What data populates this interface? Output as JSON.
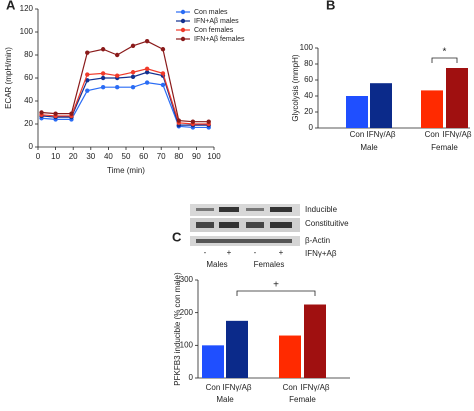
{
  "chart_data": [
    {
      "type": "line",
      "panel_label": "A",
      "x_label": "Time (min)",
      "y_label": "ECAR (mpH/min)",
      "x": [
        2,
        10,
        19,
        28,
        37,
        45,
        54,
        62,
        71,
        80,
        88,
        97
      ],
      "xlim": [
        0,
        100
      ],
      "xticks": [
        0,
        10,
        20,
        30,
        40,
        50,
        60,
        70,
        80,
        90,
        100
      ],
      "ylim": [
        0,
        120
      ],
      "yticks": [
        0,
        20,
        40,
        60,
        80,
        100,
        120
      ],
      "series": [
        {
          "name": "Con males",
          "color": "#2a6cf5",
          "values": [
            25,
            24,
            24,
            49,
            52,
            52,
            52,
            56,
            54,
            18,
            17,
            17
          ]
        },
        {
          "name": "IFN+Aβ males",
          "color": "#12308f",
          "values": [
            27,
            26,
            26,
            58,
            60,
            60,
            61,
            65,
            62,
            19,
            19,
            19
          ]
        },
        {
          "name": "Con females",
          "color": "#f03a2a",
          "values": [
            28,
            27,
            27,
            63,
            64,
            62,
            65,
            68,
            64,
            21,
            20,
            20
          ]
        },
        {
          "name": "IFN+Aβ females",
          "color": "#8a1a1a",
          "values": [
            30,
            29,
            29,
            82,
            85,
            80,
            88,
            92,
            85,
            23,
            22,
            22
          ]
        }
      ]
    },
    {
      "type": "bar",
      "panel_label": "B",
      "y_label": "Glycolysis (mmpH)",
      "categories": [
        "Con",
        "IFNγ/Aβ",
        "Con",
        "IFNγ/Aβ"
      ],
      "groups": [
        "Male",
        "Female"
      ],
      "values": [
        40,
        56,
        47,
        75
      ],
      "colors": [
        "#1f4fff",
        "#0b2a8a",
        "#ff2a00",
        "#a01010"
      ],
      "ylim": [
        0,
        100
      ],
      "yticks": [
        0,
        20,
        40,
        60,
        80,
        100
      ],
      "annotation": "*"
    },
    {
      "type": "bar",
      "panel_label": "C",
      "y_label": "PFKFB3 inducible (% con male)",
      "categories": [
        "Con",
        "IFNγ/Aβ",
        "Con",
        "IFNγ/Aβ"
      ],
      "groups": [
        "Male",
        "Female"
      ],
      "values": [
        100,
        175,
        130,
        225
      ],
      "colors": [
        "#1f4fff",
        "#0b2a8a",
        "#ff2a00",
        "#a01010"
      ],
      "ylim": [
        0,
        300
      ],
      "yticks": [
        0,
        100,
        200,
        300
      ],
      "annotation": "+"
    }
  ],
  "blot": {
    "bands": [
      "Inducible",
      "Constituitive",
      "β-Actin"
    ],
    "treatment": "IFNγ+Aβ",
    "signs": [
      "-",
      "+",
      "-",
      "+"
    ],
    "sexes": [
      "Males",
      "Females"
    ]
  }
}
